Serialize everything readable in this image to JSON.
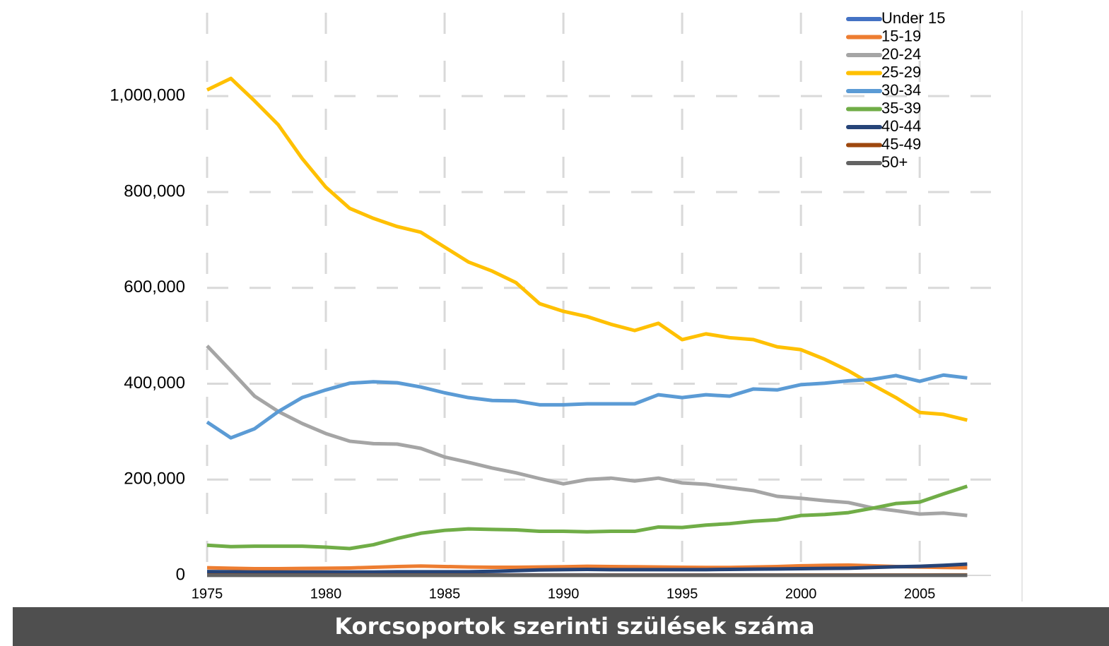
{
  "chart_data": {
    "type": "line",
    "title": "Korcsoportok szerinti szülések száma",
    "x": [
      1975,
      1976,
      1977,
      1978,
      1979,
      1980,
      1981,
      1982,
      1983,
      1984,
      1985,
      1986,
      1987,
      1988,
      1989,
      1990,
      1991,
      1992,
      1993,
      1994,
      1995,
      1996,
      1997,
      1998,
      1999,
      2000,
      2001,
      2002,
      2003,
      2004,
      2005,
      2006,
      2007
    ],
    "series": [
      {
        "name": "Under 15",
        "color": "#4472c4",
        "values": [
          1500,
          1500,
          1400,
          1400,
          1300,
          1300,
          1200,
          1200,
          1200,
          1100,
          1100,
          1100,
          1100,
          1100,
          1100,
          1100,
          1100,
          1000,
          1000,
          1000,
          900,
          900,
          900,
          900,
          800,
          800,
          800,
          700,
          700,
          700,
          700,
          600,
          600
        ]
      },
      {
        "name": "15-19",
        "color": "#ed7d31",
        "values": [
          16000,
          15000,
          14000,
          14000,
          14500,
          15000,
          15500,
          17000,
          18500,
          19500,
          18500,
          17500,
          17000,
          17000,
          17500,
          18000,
          19000,
          18500,
          18000,
          17500,
          17000,
          16500,
          16500,
          17500,
          18500,
          20000,
          21000,
          21500,
          20000,
          18500,
          17500,
          16500,
          16000
        ]
      },
      {
        "name": "20-24",
        "color": "#a5a5a5",
        "values": [
          479000,
          427000,
          374000,
          342000,
          317000,
          296000,
          280000,
          275000,
          274000,
          265000,
          247000,
          236000,
          224000,
          214000,
          202000,
          191000,
          200000,
          203000,
          197000,
          203000,
          193000,
          190000,
          183000,
          177000,
          165000,
          161000,
          156000,
          152000,
          141000,
          135000,
          128000,
          130000,
          125000
        ]
      },
      {
        "name": "25-29",
        "color": "#ffc000",
        "values": [
          1013000,
          1037000,
          990000,
          940000,
          870000,
          810000,
          766000,
          745000,
          728000,
          716000,
          685000,
          654000,
          635000,
          611000,
          567000,
          551000,
          540000,
          524000,
          511000,
          526000,
          492000,
          504000,
          496000,
          492000,
          477000,
          471000,
          451000,
          427000,
          398000,
          371000,
          340000,
          336000,
          324000
        ]
      },
      {
        "name": "30-34",
        "color": "#5b9bd5",
        "values": [
          320000,
          287000,
          306000,
          342000,
          371000,
          387000,
          401000,
          404000,
          402000,
          393000,
          381000,
          371000,
          365000,
          364000,
          356000,
          356000,
          358000,
          358000,
          358000,
          377000,
          371000,
          377000,
          374000,
          389000,
          387000,
          398000,
          401000,
          406000,
          409000,
          417000,
          405000,
          418000,
          412000
        ]
      },
      {
        "name": "35-39",
        "color": "#70ad47",
        "values": [
          63000,
          60000,
          61000,
          61000,
          61000,
          59000,
          56000,
          64000,
          77000,
          88000,
          94000,
          97000,
          96000,
          95000,
          92000,
          92000,
          91000,
          92000,
          92000,
          101000,
          100000,
          105000,
          108000,
          113000,
          116000,
          125000,
          127000,
          131000,
          140000,
          150000,
          153000,
          170000,
          186000
        ]
      },
      {
        "name": "40-44",
        "color": "#264478",
        "values": [
          8000,
          7500,
          7000,
          7000,
          7000,
          7000,
          7000,
          7000,
          7500,
          7500,
          7500,
          7500,
          8500,
          10000,
          11500,
          12000,
          12500,
          12000,
          12000,
          12000,
          12000,
          12000,
          12500,
          13000,
          13500,
          14000,
          14500,
          15000,
          16500,
          18000,
          19000,
          21000,
          23500
        ]
      },
      {
        "name": "45-49",
        "color": "#9e480e",
        "values": [
          700,
          650,
          600,
          600,
          600,
          550,
          550,
          550,
          550,
          550,
          550,
          550,
          550,
          550,
          550,
          550,
          550,
          550,
          550,
          550,
          550,
          550,
          600,
          600,
          600,
          650,
          650,
          700,
          700,
          750,
          800,
          850,
          900
        ]
      },
      {
        "name": "50+",
        "color": "#636363",
        "values": [
          100,
          100,
          100,
          100,
          100,
          100,
          100,
          100,
          100,
          100,
          100,
          100,
          100,
          100,
          100,
          100,
          100,
          100,
          100,
          100,
          100,
          100,
          100,
          100,
          100,
          100,
          100,
          100,
          100,
          100,
          100,
          100,
          100
        ]
      }
    ],
    "xlim": [
      1975,
      2008
    ],
    "xticks": [
      1975,
      1980,
      1985,
      1990,
      1995,
      2000,
      2005
    ],
    "ylim": [
      0,
      1180000
    ],
    "yticks": [
      0,
      {
        "value": 200000,
        "label": "200,000"
      },
      {
        "value": 400000,
        "label": "400,000"
      },
      {
        "value": 600000,
        "label": "600,000"
      },
      {
        "value": 800000,
        "label": "800,000"
      },
      {
        "value": 1000000,
        "label": "1,000,000"
      }
    ],
    "grid": true,
    "legend": "top-right"
  }
}
